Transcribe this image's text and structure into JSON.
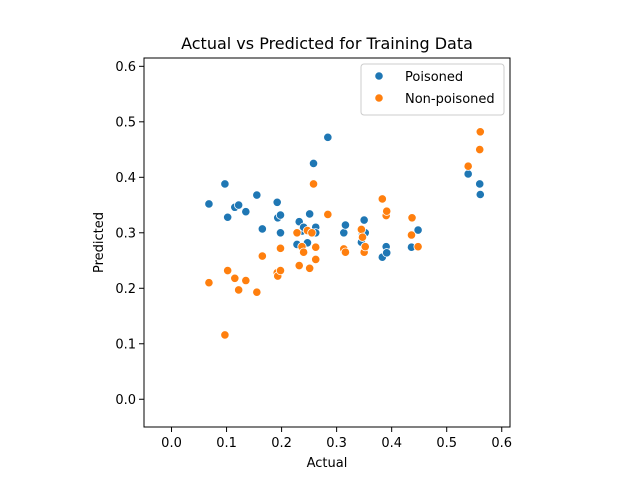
{
  "chart_data": {
    "type": "scatter",
    "title": "Actual vs Predicted for Training Data",
    "xlabel": "Actual",
    "ylabel": "Predicted",
    "xlim": [
      -0.05,
      0.615
    ],
    "ylim": [
      -0.05,
      0.615
    ],
    "xticks": [
      "0.0",
      "0.1",
      "0.2",
      "0.3",
      "0.4",
      "0.5",
      "0.6"
    ],
    "yticks": [
      "0.0",
      "0.1",
      "0.2",
      "0.3",
      "0.4",
      "0.5",
      "0.6"
    ],
    "grid": false,
    "legend_position": "top-right",
    "series": [
      {
        "name": "Poisoned",
        "color": "#1f77b4",
        "points": [
          [
            0.068,
            0.352
          ],
          [
            0.097,
            0.388
          ],
          [
            0.102,
            0.328
          ],
          [
            0.115,
            0.346
          ],
          [
            0.122,
            0.35
          ],
          [
            0.135,
            0.338
          ],
          [
            0.155,
            0.368
          ],
          [
            0.165,
            0.307
          ],
          [
            0.192,
            0.355
          ],
          [
            0.193,
            0.327
          ],
          [
            0.198,
            0.332
          ],
          [
            0.198,
            0.3
          ],
          [
            0.228,
            0.279
          ],
          [
            0.232,
            0.32
          ],
          [
            0.237,
            0.303
          ],
          [
            0.24,
            0.31
          ],
          [
            0.247,
            0.282
          ],
          [
            0.251,
            0.334
          ],
          [
            0.255,
            0.301
          ],
          [
            0.258,
            0.425
          ],
          [
            0.262,
            0.31
          ],
          [
            0.262,
            0.3
          ],
          [
            0.284,
            0.472
          ],
          [
            0.313,
            0.3
          ],
          [
            0.316,
            0.314
          ],
          [
            0.345,
            0.283
          ],
          [
            0.347,
            0.298
          ],
          [
            0.35,
            0.323
          ],
          [
            0.352,
            0.3
          ],
          [
            0.383,
            0.256
          ],
          [
            0.39,
            0.275
          ],
          [
            0.391,
            0.264
          ],
          [
            0.436,
            0.274
          ],
          [
            0.448,
            0.305
          ],
          [
            0.539,
            0.406
          ],
          [
            0.56,
            0.388
          ],
          [
            0.561,
            0.369
          ]
        ]
      },
      {
        "name": "Non-poisoned",
        "color": "#ff7f0e",
        "points": [
          [
            0.068,
            0.21
          ],
          [
            0.097,
            0.116
          ],
          [
            0.102,
            0.232
          ],
          [
            0.115,
            0.218
          ],
          [
            0.122,
            0.197
          ],
          [
            0.135,
            0.214
          ],
          [
            0.155,
            0.193
          ],
          [
            0.165,
            0.258
          ],
          [
            0.192,
            0.228
          ],
          [
            0.193,
            0.222
          ],
          [
            0.198,
            0.232
          ],
          [
            0.198,
            0.272
          ],
          [
            0.228,
            0.3
          ],
          [
            0.232,
            0.241
          ],
          [
            0.237,
            0.275
          ],
          [
            0.24,
            0.265
          ],
          [
            0.247,
            0.304
          ],
          [
            0.251,
            0.236
          ],
          [
            0.255,
            0.3
          ],
          [
            0.258,
            0.388
          ],
          [
            0.262,
            0.252
          ],
          [
            0.262,
            0.274
          ],
          [
            0.284,
            0.333
          ],
          [
            0.313,
            0.271
          ],
          [
            0.316,
            0.265
          ],
          [
            0.345,
            0.306
          ],
          [
            0.347,
            0.292
          ],
          [
            0.35,
            0.265
          ],
          [
            0.352,
            0.275
          ],
          [
            0.383,
            0.361
          ],
          [
            0.39,
            0.331
          ],
          [
            0.391,
            0.339
          ],
          [
            0.436,
            0.296
          ],
          [
            0.437,
            0.327
          ],
          [
            0.448,
            0.275
          ],
          [
            0.539,
            0.42
          ],
          [
            0.56,
            0.45
          ],
          [
            0.561,
            0.482
          ]
        ]
      }
    ]
  }
}
